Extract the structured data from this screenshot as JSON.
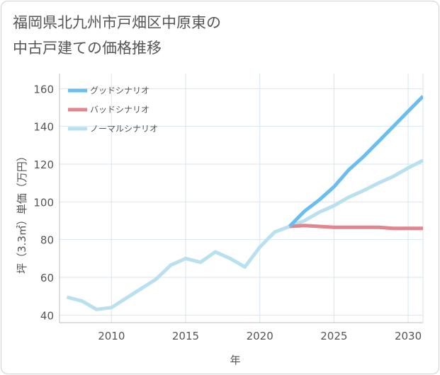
{
  "chart_data": {
    "type": "line",
    "title_line1": "福岡県北九州市戸畑区中原東の",
    "title_line2": "中古戸建ての価格推移",
    "xlabel": "年",
    "ylabel": "坪（3.3㎡）単価（万円）",
    "xlim": [
      2006.5,
      2031
    ],
    "ylim": [
      36,
      168
    ],
    "x_ticks": [
      2010,
      2015,
      2020,
      2025,
      2030
    ],
    "y_ticks": [
      40,
      60,
      80,
      100,
      120,
      140,
      160
    ],
    "grid": true,
    "legend_position": "top-left",
    "colors": {
      "good": "#6bbdf0",
      "bad": "#e0868f",
      "normal": "#b9e0ef",
      "grid": "#d6e6ee",
      "axis": "#bbbbbb"
    },
    "series": [
      {
        "key": "good",
        "name": "グッドシナリオ",
        "x": [
          2022,
          2023,
          2024,
          2025,
          2026,
          2027,
          2028,
          2029,
          2030,
          2031
        ],
        "values": [
          87,
          95,
          101,
          108,
          117,
          124,
          132,
          140,
          148,
          156
        ]
      },
      {
        "key": "bad",
        "name": "バッドシナリオ",
        "x": [
          2022,
          2023,
          2024,
          2025,
          2026,
          2027,
          2028,
          2029,
          2030,
          2031
        ],
        "values": [
          87,
          87.5,
          87,
          86.5,
          86.5,
          86.5,
          86.5,
          86,
          86,
          86
        ]
      },
      {
        "key": "normal",
        "name": "ノーマルシナリオ",
        "x": [
          2007,
          2008,
          2009,
          2010,
          2011,
          2012,
          2013,
          2014,
          2015,
          2016,
          2017,
          2018,
          2019,
          2020,
          2021,
          2022,
          2023,
          2024,
          2025,
          2026,
          2027,
          2028,
          2029,
          2030,
          2031
        ],
        "values": [
          49.5,
          47.5,
          43,
          44,
          49,
          54,
          59,
          66.5,
          70,
          68,
          73.5,
          70,
          65.5,
          76,
          84,
          87,
          90,
          94.5,
          98,
          102.5,
          106,
          110,
          113.5,
          118,
          122
        ]
      }
    ]
  }
}
